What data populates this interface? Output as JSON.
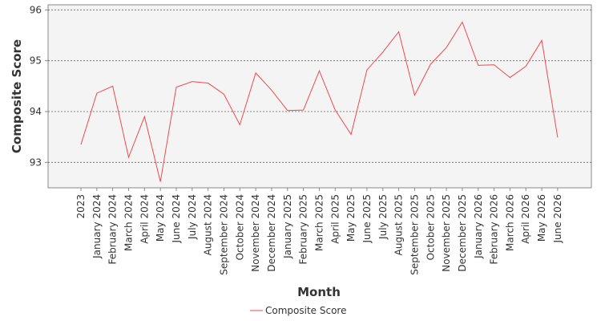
{
  "chart_data": {
    "type": "line",
    "title": "",
    "xlabel": "Month",
    "ylabel": "Composite Score",
    "ylim": [
      92.5,
      96.1
    ],
    "yticks": [
      93,
      94,
      95,
      96
    ],
    "grid": true,
    "legend_position": "bottom",
    "categories": [
      "2023",
      "January 2024",
      "February 2024",
      "March 2024",
      "April 2024",
      "May 2024",
      "June 2024",
      "July 2024",
      "August 2024",
      "September 2024",
      "October 2024",
      "November 2024",
      "December 2024",
      "January 2025",
      "February 2025",
      "March 2025",
      "April 2025",
      "May 2025",
      "June 2025",
      "July 2025",
      "August 2025",
      "September 2025",
      "October 2025",
      "November 2025",
      "December 2025",
      "January 2026",
      "February 2026",
      "March 2026",
      "April 2026",
      "May 2026",
      "June 2026"
    ],
    "series": [
      {
        "name": "Composite Score",
        "color": "#f04a4a",
        "values": [
          93.35,
          94.36,
          94.5,
          93.1,
          93.9,
          92.62,
          94.48,
          94.59,
          94.56,
          94.34,
          93.74,
          94.76,
          94.42,
          94.02,
          94.03,
          94.8,
          94.03,
          93.55,
          94.82,
          95.17,
          95.57,
          94.32,
          94.93,
          95.26,
          95.76,
          94.91,
          94.92,
          94.67,
          94.89,
          95.4,
          93.49
        ]
      }
    ]
  },
  "colors": {
    "plot_background": "#f4f4f4",
    "gridline": "#666666",
    "axis": "#888888"
  }
}
